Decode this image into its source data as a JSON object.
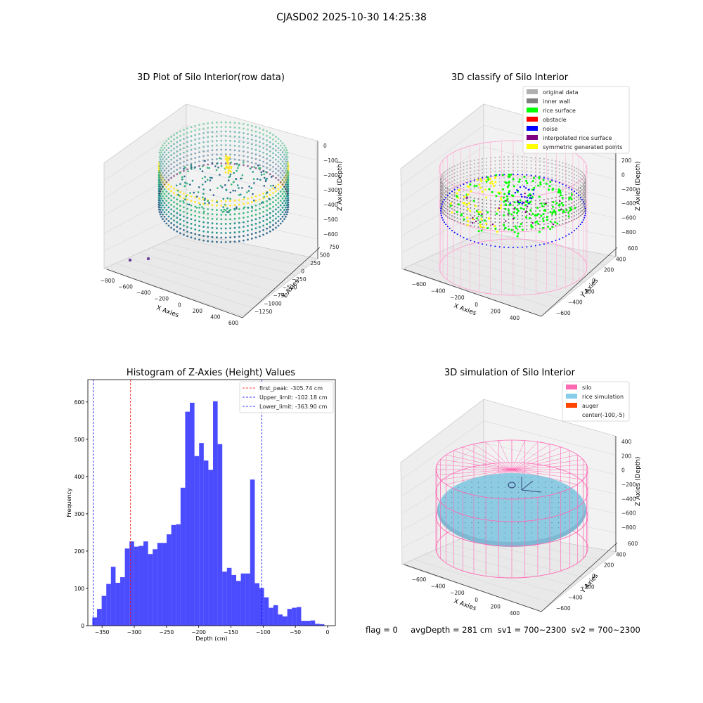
{
  "suptitle": "CJASD02 2025-10-30 14:25:38",
  "panels": {
    "raw": {
      "title": "3D Plot of Silo Interior(row data)",
      "xlabel": "X Axies",
      "ylabel": "Y Axies",
      "zlabel": "Z Axies (Depth)",
      "xticks": [
        "−800",
        "−600",
        "−400",
        "−200",
        "0",
        "200",
        "400",
        "600"
      ],
      "yticks": [
        "−1250",
        "−1000",
        "−750",
        "−500",
        "−250",
        "0",
        "250",
        "500",
        "750"
      ],
      "zticks": [
        "0",
        "−100",
        "−200",
        "−300",
        "−400",
        "−500",
        "−600"
      ],
      "colormap": [
        "#440154",
        "#31688e",
        "#21918c",
        "#35b779",
        "#fde725"
      ]
    },
    "classify": {
      "title": "3D classify of Silo Interior",
      "xlabel": "X Axies",
      "ylabel": "Y Axies",
      "zlabel": "Z Axies (Depth)",
      "xticks": [
        "−600",
        "−400",
        "−200",
        "0",
        "200",
        "400"
      ],
      "yticks": [
        "−600",
        "−400",
        "−200",
        "0",
        "200",
        "400",
        "600"
      ],
      "zticks": [
        "200",
        "0",
        "−200",
        "−400",
        "−600",
        "−800"
      ],
      "zticks_partial_top": "0",
      "legend": [
        {
          "label": "original data",
          "color": "#b0b0b0"
        },
        {
          "label": "inner wall",
          "color": "#808080"
        },
        {
          "label": "rice surface",
          "color": "#00ff00"
        },
        {
          "label": "obstacle",
          "color": "#ff0000"
        },
        {
          "label": "noise",
          "color": "#0000ff"
        },
        {
          "label": "interpolated rice surface",
          "color": "#800080"
        },
        {
          "label": "symmetric generated points",
          "color": "#ffff00"
        }
      ]
    },
    "simulation": {
      "title": "3D simulation of Silo Interior",
      "xlabel": "X Axies",
      "ylabel": "Y Axies",
      "zlabel": "Z Axies (Depth)",
      "xticks": [
        "−600",
        "−400",
        "−200",
        "0",
        "200",
        "400"
      ],
      "yticks": [
        "−600",
        "−400",
        "−200",
        "0",
        "200",
        "400",
        "600"
      ],
      "zticks": [
        "400",
        "200",
        "0",
        "−200",
        "−400",
        "−600",
        "−800"
      ],
      "legend": [
        {
          "label": "silo",
          "color": "#ff69b4"
        },
        {
          "label": "rice simulation",
          "color": "#87ceeb"
        },
        {
          "label": "auger",
          "color": "#ff4500"
        },
        {
          "label": "center(-100,-5)",
          "color": ""
        }
      ]
    }
  },
  "chart_data": [
    {
      "type": "bar",
      "title": "Histogram of Z-Axies (Height) Values",
      "xlabel": "Depth (cm)",
      "ylabel": "Frequency",
      "bar_color": "#0000ff",
      "bin_start": -365,
      "bin_width": 7.2,
      "values": [
        22,
        45,
        80,
        112,
        158,
        115,
        130,
        207,
        226,
        212,
        214,
        226,
        192,
        205,
        222,
        222,
        245,
        270,
        272,
        370,
        574,
        598,
        455,
        490,
        443,
        418,
        602,
        487,
        145,
        155,
        136,
        120,
        140,
        140,
        392,
        114,
        101,
        76,
        48,
        55,
        30,
        25,
        45,
        48,
        50,
        13,
        13,
        14,
        5,
        4
      ],
      "xlim": [
        -372,
        12
      ],
      "ylim": [
        0,
        660
      ],
      "xticks": [
        -350,
        -300,
        -250,
        -200,
        -150,
        -100,
        -50,
        0
      ],
      "xtick_labels": [
        "−350",
        "−300",
        "−250",
        "−200",
        "−150",
        "−100",
        "−50",
        "0"
      ],
      "yticks": [
        0,
        100,
        200,
        300,
        400,
        500,
        600
      ],
      "vlines": [
        {
          "x": -305.74,
          "color": "#ff0000",
          "label": "first_peak: -305.74 cm"
        },
        {
          "x": -102.18,
          "color": "#0000ff",
          "label": "Upper_limit: -102.18 cm"
        },
        {
          "x": -363.9,
          "color": "#0000ff",
          "label": "Lower_limit: -363.90 cm"
        }
      ],
      "legend_position": "upper right"
    }
  ],
  "footer": "flag = 0     avgDepth = 281 cm  sv1 = 700~2300  sv2 = 700~2300"
}
